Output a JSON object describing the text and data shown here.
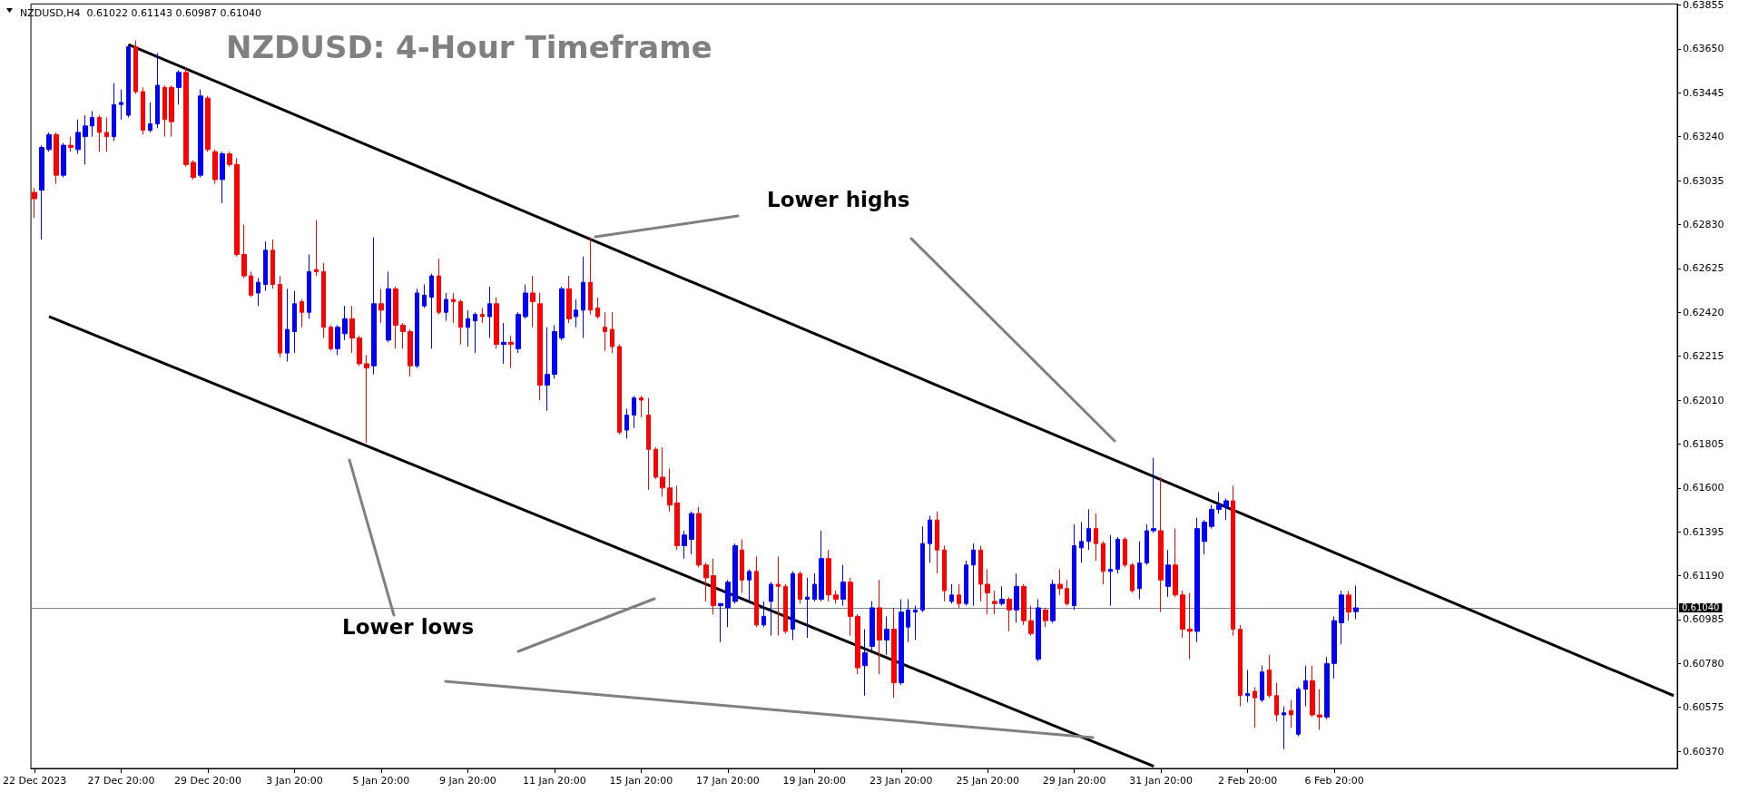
{
  "chart_data": {
    "type": "candlestick",
    "title": "NZDUSD: 4-Hour Timeframe",
    "annotations": [
      "NZDUSD,H4  0.61022 0.61143 0.60987 0.61040",
      "Lower highs",
      "Lower lows"
    ],
    "categories": [
      "22 Dec 2023",
      null,
      null,
      null,
      null,
      null,
      null,
      null,
      null,
      null,
      null,
      null,
      "27 Dec 20:00",
      null,
      null,
      null,
      null,
      null,
      null,
      null,
      null,
      null,
      null,
      null,
      "29 Dec 20:00",
      null,
      null,
      null,
      null,
      null,
      null,
      null,
      null,
      null,
      null,
      null,
      "3 Jan 20:00",
      null,
      null,
      null,
      null,
      null,
      null,
      null,
      null,
      null,
      null,
      null,
      "5 Jan 20:00",
      null,
      null,
      null,
      null,
      null,
      null,
      null,
      null,
      null,
      null,
      null,
      "9 Jan 20:00",
      null,
      null,
      null,
      null,
      null,
      null,
      null,
      null,
      null,
      null,
      null,
      "11 Jan 20:00",
      null,
      null,
      null,
      null,
      null,
      null,
      null,
      null,
      null,
      null,
      null,
      "15 Jan 20:00",
      null,
      null,
      null,
      null,
      null,
      null,
      null,
      null,
      null,
      null,
      null,
      "17 Jan 20:00",
      null,
      null,
      null,
      null,
      null,
      null,
      null,
      null,
      null,
      null,
      null,
      "19 Jan 20:00",
      null,
      null,
      null,
      null,
      null,
      null,
      null,
      null,
      null,
      null,
      null,
      "23 Jan 20:00",
      null,
      null,
      null,
      null,
      null,
      null,
      null,
      null,
      null,
      null,
      null,
      "25 Jan 20:00",
      null,
      null,
      null,
      null,
      null,
      null,
      null,
      null,
      null,
      null,
      null,
      "29 Jan 20:00",
      null,
      null,
      null,
      null,
      null,
      null,
      null,
      null,
      null,
      null,
      null,
      "31 Jan 20:00",
      null,
      null,
      null,
      null,
      null,
      null,
      null,
      null,
      null,
      null,
      null,
      "2 Feb 20:00",
      null,
      null,
      null,
      null,
      null,
      null,
      null,
      null,
      null,
      null,
      null,
      "6 Feb 20:00",
      null,
      null,
      null,
      null,
      null,
      null,
      null,
      null,
      null,
      null,
      null,
      null,
      null,
      null,
      null,
      null,
      null,
      null,
      null,
      null,
      null,
      null,
      null,
      null,
      null,
      null,
      null,
      null,
      null,
      null,
      null,
      null,
      null,
      null,
      null,
      null,
      null,
      null,
      null,
      null,
      null,
      null,
      null,
      null,
      null,
      null,
      null
    ],
    "series": [
      {
        "type": "candlestick",
        "colors": [
          "#ff0000",
          "#0000ff",
          "#0000ff",
          "#ff0000",
          "#0000ff",
          "#ff0000",
          "#0000ff",
          "#0000ff",
          "#0000ff",
          "#ff0000",
          "#ff0000",
          "#0000ff",
          "#0000ff",
          "#0000ff",
          "#ff0000",
          "#ff0000",
          "#0000ff",
          "#0000ff",
          "#ff0000",
          "#ff0000",
          "#0000ff",
          "#ff0000",
          "#ff0000",
          "#0000ff",
          "#ff0000",
          "#ff0000",
          "#0000ff",
          "#ff0000",
          "#ff0000",
          "#ff0000",
          "#ff0000",
          "#0000ff",
          "#0000ff",
          "#ff0000",
          "#ff0000",
          "#0000ff",
          "#0000ff",
          "#ff0000",
          "#0000ff",
          "#ff0000",
          "#ff0000",
          "#ff0000",
          "#0000ff",
          "#0000ff",
          "#ff0000",
          "#ff0000",
          "#ff0000",
          "#0000ff",
          "#ff0000",
          "#0000ff",
          "#ff0000",
          "#ff0000",
          "#ff0000",
          "#0000ff",
          "#0000ff",
          "#0000ff",
          "#ff0000",
          "#0000ff",
          "#ff0000",
          "#ff0000",
          "#0000ff",
          "#0000ff",
          "#ff0000",
          "#0000ff",
          "#ff0000",
          "#0000ff",
          "#ff0000",
          "#0000ff",
          "#0000ff",
          "#ff0000",
          "#ff0000",
          "#0000ff",
          "#0000ff",
          "#0000ff",
          "#ff0000",
          "#0000ff",
          "#0000ff",
          "#ff0000",
          "#ff0000",
          "#ff0000",
          "#ff0000",
          "#ff0000",
          "#0000ff",
          "#0000ff",
          "#ff0000",
          "#ff0000",
          "#ff0000",
          "#ff0000",
          "#ff0000",
          "#ff0000",
          "#0000ff",
          "#0000ff",
          "#ff0000",
          "#ff0000",
          "#ff0000",
          "#0000ff",
          "#0000ff",
          "#0000ff",
          "#ff0000",
          "#0000ff",
          "#ff0000",
          "#0000ff",
          "#0000ff",
          "#ff0000",
          "#ff0000",
          "#0000ff",
          "#ff0000",
          "#0000ff",
          "#0000ff",
          "#0000ff",
          "#ff0000",
          "#ff0000",
          "#0000ff",
          "#ff0000",
          "#ff0000",
          "#0000ff",
          "#0000ff",
          "#ff0000",
          "#0000ff",
          "#ff0000",
          "#0000ff",
          "#0000ff",
          "#0000ff",
          "#0000ff",
          "#0000ff",
          "#ff0000",
          "#ff0000",
          "#0000ff",
          "#ff0000",
          "#0000ff",
          "#0000ff",
          "#ff0000",
          "#ff0000",
          "#ff0000",
          "#0000ff",
          "#ff0000",
          "#0000ff",
          "#ff0000",
          "#ff0000",
          "#0000ff",
          "#ff0000",
          "#0000ff",
          "#ff0000",
          "#ff0000",
          "#0000ff",
          "#0000ff",
          "#0000ff",
          "#ff0000",
          "#ff0000",
          "#0000ff",
          "#0000ff",
          "#ff0000",
          "#ff0000",
          "#0000ff",
          "#0000ff",
          "#0000ff",
          "#ff0000",
          "#0000ff",
          "#ff0000",
          "#ff0000",
          "#ff0000",
          "#0000ff",
          "#0000ff",
          "#0000ff",
          "#0000ff",
          "#0000ff",
          "#ff0000",
          "#ff0000",
          "#0000ff",
          "#ff0000",
          "#0000ff",
          "#ff0000",
          "#ff0000",
          "#0000ff",
          "#ff0000",
          "#0000ff",
          "#0000ff",
          "#ff0000",
          "#ff0000",
          "#0000ff",
          "#0000ff",
          "#0000ff",
          "#ff0000",
          "#0000ff",
          null,
          null,
          null,
          null,
          null,
          null,
          null,
          null,
          null,
          null,
          null,
          null,
          null,
          null,
          null,
          null,
          null,
          null,
          null,
          null,
          null,
          null,
          null,
          null,
          null,
          null,
          null,
          null,
          null,
          null,
          null,
          null,
          null,
          null,
          null,
          null,
          null,
          null,
          null,
          null,
          null,
          null,
          null,
          null
        ],
        "ohlc": [
          [
            0.6298,
            0.63,
            0.6286,
            0.6295
          ],
          [
            0.6299,
            0.632,
            0.6276,
            0.6319
          ],
          [
            0.6318,
            0.6326,
            0.6317,
            0.6325
          ],
          [
            0.6325,
            0.6326,
            0.6302,
            0.6306
          ],
          [
            0.6306,
            0.6321,
            0.6305,
            0.632
          ],
          [
            0.632,
            0.6324,
            0.6317,
            0.6319
          ],
          [
            0.6318,
            0.6332,
            0.6316,
            0.6326
          ],
          [
            0.6324,
            0.6334,
            0.6311,
            0.6329
          ],
          [
            0.6329,
            0.6336,
            0.6324,
            0.6333
          ],
          [
            0.6333,
            0.6334,
            0.6317,
            0.6326
          ],
          [
            0.6326,
            0.6333,
            0.6317,
            0.6324
          ],
          [
            0.6324,
            0.6349,
            0.6322,
            0.6339
          ],
          [
            0.6339,
            0.6346,
            0.6332,
            0.634
          ],
          [
            0.6334,
            0.6367,
            0.6333,
            0.6366
          ],
          [
            0.6366,
            0.6369,
            0.6344,
            0.6345
          ],
          [
            0.6345,
            0.6347,
            0.6325,
            0.6327
          ],
          [
            0.6327,
            0.634,
            0.6326,
            0.633
          ],
          [
            0.633,
            0.6363,
            0.6328,
            0.6348
          ],
          [
            0.6347,
            0.6348,
            0.6324,
            0.6332
          ],
          [
            0.6347,
            0.6348,
            0.6324,
            0.6331
          ],
          [
            0.6347,
            0.6355,
            0.6339,
            0.6354
          ],
          [
            0.6354,
            0.6356,
            0.631,
            0.6311
          ],
          [
            0.6312,
            0.6313,
            0.6304,
            0.6305
          ],
          [
            0.6306,
            0.6346,
            0.6305,
            0.6343
          ],
          [
            0.6342,
            0.6343,
            0.6317,
            0.6318
          ],
          [
            0.6317,
            0.6318,
            0.6302,
            0.6304
          ],
          [
            0.6304,
            0.6317,
            0.6293,
            0.6316
          ],
          [
            0.6316,
            0.6317,
            0.631,
            0.6311
          ],
          [
            0.6311,
            0.6314,
            0.6268,
            0.6269
          ],
          [
            0.6269,
            0.6283,
            0.6258,
            0.6259
          ],
          [
            0.6259,
            0.6261,
            0.6249,
            0.625
          ],
          [
            0.6251,
            0.6258,
            0.6245,
            0.6256
          ],
          [
            0.6255,
            0.6275,
            0.6252,
            0.6271
          ],
          [
            0.6271,
            0.6276,
            0.6253,
            0.6255
          ],
          [
            0.6255,
            0.6259,
            0.6221,
            0.6223
          ],
          [
            0.6223,
            0.6253,
            0.6219,
            0.6234
          ],
          [
            0.6233,
            0.6252,
            0.6223,
            0.6246
          ],
          [
            0.6247,
            0.6248,
            0.6235,
            0.6242
          ],
          [
            0.6242,
            0.6269,
            0.6239,
            0.6261
          ],
          [
            0.6262,
            0.6285,
            0.6259,
            0.6261
          ],
          [
            0.6261,
            0.6265,
            0.623,
            0.6235
          ],
          [
            0.6235,
            0.6236,
            0.6224,
            0.6225
          ],
          [
            0.6225,
            0.6236,
            0.6222,
            0.6235
          ],
          [
            0.6232,
            0.6245,
            0.6229,
            0.6239
          ],
          [
            0.6239,
            0.6245,
            0.6223,
            0.623
          ],
          [
            0.623,
            0.6231,
            0.6217,
            0.6218
          ],
          [
            0.6218,
            0.6222,
            0.6181,
            0.6216
          ],
          [
            0.6217,
            0.6277,
            0.6213,
            0.6246
          ],
          [
            0.6246,
            0.6253,
            0.6237,
            0.6243
          ],
          [
            0.6229,
            0.6261,
            0.6228,
            0.6253
          ],
          [
            0.6253,
            0.6254,
            0.6225,
            0.6236
          ],
          [
            0.6236,
            0.6237,
            0.6225,
            0.6233
          ],
          [
            0.6233,
            0.6234,
            0.6212,
            0.6217
          ],
          [
            0.6217,
            0.6253,
            0.6216,
            0.6251
          ],
          [
            0.6245,
            0.6255,
            0.6244,
            0.625
          ],
          [
            0.6249,
            0.626,
            0.6225,
            0.6259
          ],
          [
            0.6259,
            0.6267,
            0.6241,
            0.6242
          ],
          [
            0.6242,
            0.6251,
            0.6238,
            0.6248
          ],
          [
            0.6248,
            0.6251,
            0.6237,
            0.6247
          ],
          [
            0.6247,
            0.6248,
            0.6227,
            0.6235
          ],
          [
            0.6235,
            0.6243,
            0.6226,
            0.6239
          ],
          [
            0.6238,
            0.6242,
            0.6223,
            0.6241
          ],
          [
            0.6241,
            0.6244,
            0.6237,
            0.624
          ],
          [
            0.624,
            0.6254,
            0.623,
            0.6246
          ],
          [
            0.6246,
            0.6249,
            0.6225,
            0.6227
          ],
          [
            0.6227,
            0.6237,
            0.6218,
            0.6228
          ],
          [
            0.6228,
            0.6231,
            0.6216,
            0.6227
          ],
          [
            0.6225,
            0.6242,
            0.6223,
            0.6241
          ],
          [
            0.624,
            0.6255,
            0.6239,
            0.6251
          ],
          [
            0.6251,
            0.6259,
            0.6235,
            0.6247
          ],
          [
            0.6246,
            0.6251,
            0.6201,
            0.6208
          ],
          [
            0.6208,
            0.6235,
            0.6196,
            0.6213
          ],
          [
            0.6213,
            0.6236,
            0.6211,
            0.6233
          ],
          [
            0.623,
            0.6254,
            0.6229,
            0.6253
          ],
          [
            0.6253,
            0.6259,
            0.6237,
            0.6239
          ],
          [
            0.624,
            0.6248,
            0.6235,
            0.6243
          ],
          [
            0.6243,
            0.6268,
            0.623,
            0.6256
          ],
          [
            0.6256,
            0.6277,
            0.6241,
            0.6243
          ],
          [
            0.6244,
            0.6249,
            0.6239,
            0.624
          ],
          [
            0.6235,
            0.6242,
            0.6224,
            0.6233
          ],
          [
            0.6234,
            0.6242,
            0.6223,
            0.6226
          ],
          [
            0.6226,
            0.6227,
            0.6185,
            0.6186
          ],
          [
            0.6187,
            0.6197,
            0.6183,
            0.6194
          ],
          [
            0.6194,
            0.6203,
            0.6188,
            0.6202
          ],
          [
            0.6202,
            0.6203,
            0.6193,
            0.6201
          ],
          [
            0.6194,
            0.6202,
            0.6159,
            0.6178
          ],
          [
            0.6178,
            0.6179,
            0.6164,
            0.6165
          ],
          [
            0.6165,
            0.6179,
            0.6156,
            0.616
          ],
          [
            0.616,
            0.6169,
            0.6149,
            0.6152
          ],
          [
            0.6153,
            0.6161,
            0.6131,
            0.6133
          ],
          [
            0.6133,
            0.614,
            0.6127,
            0.6138
          ],
          [
            0.6136,
            0.6149,
            0.6129,
            0.6148
          ],
          [
            0.6148,
            0.6151,
            0.6123,
            0.6124
          ],
          [
            0.6124,
            0.6125,
            0.6107,
            0.6118
          ],
          [
            0.6119,
            0.6127,
            0.6101,
            0.6105
          ],
          [
            0.6105,
            0.6106,
            0.6088,
            0.6106
          ],
          [
            0.6104,
            0.6117,
            0.6095,
            0.6116
          ],
          [
            0.6107,
            0.6134,
            0.6106,
            0.6133
          ],
          [
            0.6131,
            0.6136,
            0.6111,
            0.6117
          ],
          [
            0.6117,
            0.6122,
            0.6107,
            0.6121
          ],
          [
            0.6121,
            0.6128,
            0.6095,
            0.6096
          ],
          [
            0.6096,
            0.6107,
            0.6095,
            0.61
          ],
          [
            0.6107,
            0.6116,
            0.6091,
            0.6115
          ],
          [
            0.6115,
            0.6128,
            0.6091,
            0.6114
          ],
          [
            0.6114,
            0.6115,
            0.6092,
            0.6093
          ],
          [
            0.6094,
            0.6121,
            0.6089,
            0.612
          ],
          [
            0.612,
            0.6121,
            0.6106,
            0.6108
          ],
          [
            0.6108,
            0.6118,
            0.609,
            0.6109
          ],
          [
            0.6108,
            0.612,
            0.6107,
            0.6115
          ],
          [
            0.6108,
            0.614,
            0.6107,
            0.6127
          ],
          [
            0.6127,
            0.6131,
            0.6107,
            0.611
          ],
          [
            0.611,
            0.6112,
            0.6106,
            0.6108
          ],
          [
            0.6108,
            0.6124,
            0.6105,
            0.6116
          ],
          [
            0.6116,
            0.6118,
            0.6091,
            0.61
          ],
          [
            0.61,
            0.6101,
            0.6073,
            0.6076
          ],
          [
            0.6077,
            0.6094,
            0.6063,
            0.6083
          ],
          [
            0.6086,
            0.6107,
            0.6084,
            0.6104
          ],
          [
            0.6104,
            0.6117,
            0.6073,
            0.6089
          ],
          [
            0.6089,
            0.61,
            0.6082,
            0.6094
          ],
          [
            0.6094,
            0.6104,
            0.6062,
            0.6069
          ],
          [
            0.6069,
            0.6108,
            0.6068,
            0.6102
          ],
          [
            0.6095,
            0.6108,
            0.6088,
            0.6103
          ],
          [
            0.6102,
            0.6105,
            0.6089,
            0.6103
          ],
          [
            0.6103,
            0.6142,
            0.6102,
            0.6134
          ],
          [
            0.6134,
            0.6147,
            0.6125,
            0.6145
          ],
          [
            0.6145,
            0.6149,
            0.612,
            0.6131
          ],
          [
            0.6131,
            0.6133,
            0.6107,
            0.6112
          ],
          [
            0.6107,
            0.6115,
            0.6106,
            0.611
          ],
          [
            0.611,
            0.6115,
            0.6104,
            0.6106
          ],
          [
            0.6106,
            0.6126,
            0.6105,
            0.6124
          ],
          [
            0.6124,
            0.6134,
            0.6105,
            0.6131
          ],
          [
            0.6131,
            0.6133,
            0.6107,
            0.6115
          ],
          [
            0.6115,
            0.6122,
            0.6101,
            0.6111
          ],
          [
            0.6107,
            0.6112,
            0.6101,
            0.6106
          ],
          [
            0.6106,
            0.6114,
            0.6105,
            0.6108
          ],
          [
            0.6108,
            0.6109,
            0.6093,
            0.6103
          ],
          [
            0.6103,
            0.612,
            0.6097,
            0.6114
          ],
          [
            0.6114,
            0.6115,
            0.6096,
            0.6098
          ],
          [
            0.6098,
            0.6105,
            0.6091,
            0.6092
          ],
          [
            0.608,
            0.6108,
            0.6079,
            0.6104
          ],
          [
            0.6103,
            0.6104,
            0.6095,
            0.6098
          ],
          [
            0.6098,
            0.6117,
            0.6097,
            0.6115
          ],
          [
            0.6115,
            0.6122,
            0.611,
            0.6113
          ],
          [
            0.6113,
            0.6117,
            0.6105,
            0.6106
          ],
          [
            0.6105,
            0.6143,
            0.6103,
            0.6133
          ],
          [
            0.6132,
            0.6144,
            0.6125,
            0.6135
          ],
          [
            0.6135,
            0.615,
            0.6131,
            0.6141
          ],
          [
            0.6141,
            0.6148,
            0.6126,
            0.6134
          ],
          [
            0.6134,
            0.6135,
            0.6115,
            0.6121
          ],
          [
            0.6121,
            0.6138,
            0.6105,
            0.6122
          ],
          [
            0.6122,
            0.6137,
            0.612,
            0.6136
          ],
          [
            0.6136,
            0.6137,
            0.6123,
            0.6124
          ],
          [
            0.6124,
            0.6125,
            0.6111,
            0.6112
          ],
          [
            0.6113,
            0.6135,
            0.6108,
            0.6125
          ],
          [
            0.6125,
            0.6143,
            0.6124,
            0.614
          ],
          [
            0.614,
            0.6174,
            0.6139,
            0.6141
          ],
          [
            0.614,
            0.6165,
            0.6102,
            0.6117
          ],
          [
            0.6114,
            0.6131,
            0.6109,
            0.6124
          ],
          [
            0.6124,
            0.6141,
            0.6109,
            0.611
          ],
          [
            0.611,
            0.6112,
            0.609,
            0.6094
          ],
          [
            0.6094,
            0.6111,
            0.608,
            0.6093
          ],
          [
            0.6093,
            0.6146,
            0.6088,
            0.6141
          ],
          [
            0.6135,
            0.6145,
            0.6129,
            0.6144
          ],
          [
            0.6142,
            0.6152,
            0.6141,
            0.615
          ],
          [
            0.615,
            0.6158,
            0.6148,
            0.6152
          ],
          [
            0.6151,
            0.6155,
            0.6145,
            0.6154
          ],
          [
            0.6154,
            0.6161,
            0.6091,
            0.6094
          ],
          [
            0.6094,
            0.6096,
            0.6058,
            0.6063
          ],
          [
            0.6063,
            0.6075,
            0.606,
            0.6064
          ],
          [
            0.6065,
            0.6067,
            0.6048,
            0.6062
          ],
          [
            0.6061,
            0.6077,
            0.606,
            0.6074
          ],
          [
            0.6075,
            0.6082,
            0.6062,
            0.6063
          ],
          [
            0.6063,
            0.6069,
            0.6051,
            0.6054
          ],
          [
            0.6054,
            0.6058,
            0.6038,
            0.6055
          ],
          [
            0.6056,
            0.6061,
            0.6048,
            0.6054
          ],
          [
            0.6045,
            0.6067,
            0.6044,
            0.6066
          ],
          [
            0.6066,
            0.6077,
            0.6058,
            0.607
          ],
          [
            0.607,
            0.6077,
            0.6053,
            0.6054
          ],
          [
            0.6054,
            0.6066,
            0.6047,
            0.6053
          ],
          [
            0.6053,
            0.6081,
            0.6052,
            0.6078
          ],
          [
            0.6078,
            0.61,
            0.6071,
            0.6098
          ],
          [
            0.6097,
            0.6112,
            0.6087,
            0.611
          ],
          [
            0.611,
            0.6112,
            0.6098,
            0.6102
          ],
          [
            0.61022,
            0.61143,
            0.60987,
            0.6104
          ],
          null,
          null,
          null,
          null,
          null,
          null,
          null,
          null,
          null,
          null,
          null,
          null,
          null,
          null,
          null,
          null,
          null,
          null,
          null,
          null,
          null,
          null,
          null,
          null,
          null,
          null,
          null,
          null,
          null,
          null,
          null,
          null,
          null,
          null,
          null,
          null,
          null,
          null,
          null,
          null,
          null,
          null,
          null,
          null
        ]
      },
      {
        "type": "line",
        "color": "#000000",
        "values": [
          null,
          null,
          null,
          null,
          null,
          null,
          null,
          null,
          null,
          null,
          null,
          null,
          null,
          0.6367,
          null,
          null,
          null,
          null,
          null,
          null,
          null,
          null,
          null,
          null,
          null,
          null,
          null,
          null,
          null,
          null,
          null,
          null,
          null,
          null,
          null,
          null,
          null,
          null,
          null,
          null,
          null,
          null,
          null,
          null,
          null,
          null,
          null,
          null,
          null,
          null,
          null,
          null,
          null,
          null,
          null,
          null,
          null,
          null,
          null,
          null,
          null,
          null,
          null,
          null,
          null,
          null,
          null,
          null,
          null,
          null,
          null,
          null,
          null,
          null,
          null,
          null,
          null,
          null,
          null,
          null,
          null,
          null,
          null,
          null,
          null,
          null,
          null,
          null,
          null,
          null,
          null,
          null,
          null,
          null,
          null,
          null,
          null,
          null,
          null,
          null,
          null,
          null,
          null,
          null,
          null,
          null,
          null,
          null,
          null,
          null,
          null,
          null,
          null,
          null,
          null,
          null,
          null,
          null,
          null,
          null,
          null,
          null,
          null,
          null,
          null,
          null,
          null,
          null,
          null,
          null,
          null,
          null,
          null,
          null,
          null,
          null,
          null,
          null,
          null,
          null,
          null,
          null,
          null,
          null,
          null,
          null,
          null,
          null,
          null,
          null,
          null,
          null,
          null,
          null,
          null,
          null,
          null,
          null,
          null,
          null,
          null,
          null,
          null,
          null,
          null,
          null,
          null,
          null,
          null,
          null,
          null,
          null,
          null,
          null,
          null,
          null,
          null,
          null,
          null,
          null,
          null,
          null,
          null,
          null,
          null,
          null,
          null,
          null,
          null,
          null,
          null,
          null,
          null,
          null,
          null,
          null,
          null,
          null,
          null,
          null,
          null,
          null,
          null,
          null,
          null,
          null,
          null,
          null,
          null,
          null,
          null,
          null,
          null,
          null,
          null,
          null,
          null,
          null,
          null,
          null,
          null,
          null,
          null,
          null,
          null,
          null,
          null,
          0.6063
        ]
      },
      {
        "type": "line",
        "color": "#000000",
        "values": [
          null,
          null,
          0.624,
          null,
          null,
          null,
          null,
          null,
          null,
          null,
          null,
          null,
          null,
          null,
          null,
          null,
          null,
          null,
          null,
          null,
          null,
          null,
          null,
          null,
          null,
          null,
          null,
          null,
          null,
          null,
          null,
          null,
          null,
          null,
          null,
          null,
          null,
          null,
          null,
          null,
          null,
          null,
          null,
          null,
          null,
          null,
          null,
          null,
          null,
          null,
          null,
          null,
          null,
          null,
          null,
          null,
          null,
          null,
          null,
          null,
          null,
          null,
          null,
          null,
          null,
          null,
          null,
          null,
          null,
          null,
          null,
          null,
          null,
          null,
          null,
          null,
          null,
          null,
          null,
          null,
          null,
          null,
          null,
          null,
          null,
          null,
          null,
          null,
          null,
          null,
          null,
          null,
          null,
          null,
          null,
          null,
          null,
          null,
          null,
          null,
          null,
          null,
          null,
          null,
          null,
          null,
          null,
          null,
          null,
          null,
          null,
          null,
          null,
          null,
          null,
          null,
          null,
          null,
          null,
          null,
          null,
          null,
          null,
          null,
          null,
          null,
          null,
          null,
          null,
          null,
          null,
          null,
          null,
          null,
          null,
          null,
          null,
          null,
          null,
          null,
          null,
          null,
          null,
          null,
          null,
          null,
          null,
          null,
          null,
          null,
          null,
          null,
          null,
          null,
          null,
          0.603,
          null,
          null,
          null,
          null,
          null,
          null,
          null,
          null,
          null,
          null,
          null,
          null,
          null,
          null,
          null,
          null,
          null,
          null,
          null,
          null,
          null,
          null,
          null,
          null,
          null,
          null,
          null,
          null,
          null,
          null,
          null,
          null,
          null,
          null,
          null,
          null,
          null,
          null,
          null,
          null,
          null,
          null,
          null,
          null,
          null,
          null,
          null,
          null,
          null,
          null,
          null,
          null,
          null,
          null,
          null,
          null,
          null,
          null,
          null,
          null,
          null,
          null,
          null,
          null,
          null,
          null,
          null,
          null,
          null,
          null,
          null,
          null
        ]
      }
    ],
    "ylim": [
      0.6029,
      0.6386
    ],
    "yticks": [
      {
        "value": 0.63855,
        "label": "0.63855"
      },
      {
        "value": 0.6365,
        "label": "0.63650"
      },
      {
        "value": 0.63445,
        "label": "0.63445"
      },
      {
        "value": 0.6324,
        "label": "0.63240"
      },
      {
        "value": 0.63035,
        "label": "0.63035"
      },
      {
        "value": 0.6283,
        "label": "0.62830"
      },
      {
        "value": 0.62625,
        "label": "0.62625"
      },
      {
        "value": 0.6242,
        "label": "0.62420"
      },
      {
        "value": 0.62215,
        "label": "0.62215"
      },
      {
        "value": 0.6201,
        "label": "0.62010"
      },
      {
        "value": 0.61805,
        "label": "0.61805"
      },
      {
        "value": 0.616,
        "label": "0.61600"
      },
      {
        "value": 0.61395,
        "label": "0.61395"
      },
      {
        "value": 0.6119,
        "label": "0.61190"
      },
      {
        "value": 0.60985,
        "label": "0.60985"
      },
      {
        "value": 0.6078,
        "label": "0.60780"
      },
      {
        "value": 0.60575,
        "label": "0.60575"
      },
      {
        "value": 0.6037,
        "label": "0.60370"
      }
    ],
    "ref_lines": [
      {
        "axis": "y",
        "value": 0.6104,
        "label": "0.61040",
        "color": "#778899"
      }
    ]
  }
}
